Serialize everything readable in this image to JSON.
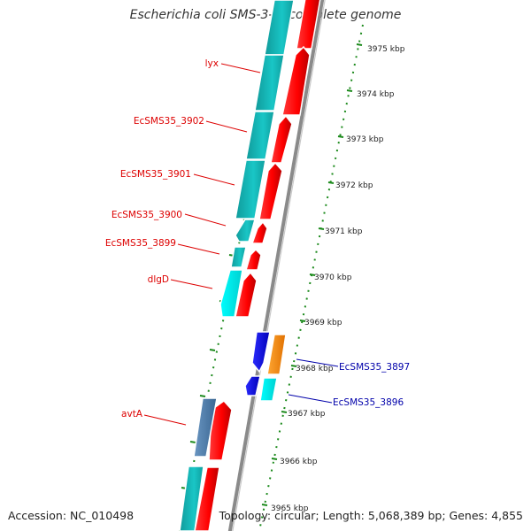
{
  "title": "Escherichia coli SMS-3-5, complete genome",
  "footer": {
    "accession": "Accession: NC_010498",
    "topology": "Topology: circular; Length: 5,068,389 bp; Genes: 4,855"
  },
  "colors": {
    "cds_forward": "#ff0000",
    "cds_reverse_inner": "#19c3c3",
    "cds_reverse_outer": "#00e5e5",
    "blue_gene": "#0000ee",
    "orange_gene": "#ff8c00",
    "steel_gene": "#4a7aa8",
    "label_red": "#dd0000",
    "label_blue": "#0000aa",
    "ruler_green": "#1c8a1c",
    "backbone": "#888888"
  },
  "ticks": [
    "3975 kbp",
    "3974 kbp",
    "3973 kbp",
    "3972 kbp",
    "3971 kbp",
    "3970 kbp",
    "3969 kbp",
    "3968 kbp",
    "3967 kbp",
    "3966 kbp",
    "3965 kbp"
  ],
  "gene_labels": [
    {
      "text": "lyx",
      "color": "red"
    },
    {
      "text": "EcSMS35_3902",
      "color": "red"
    },
    {
      "text": "EcSMS35_3901",
      "color": "red"
    },
    {
      "text": "EcSMS35_3900",
      "color": "red"
    },
    {
      "text": "EcSMS35_3899",
      "color": "red"
    },
    {
      "text": "dlgD",
      "color": "red"
    },
    {
      "text": "EcSMS35_3897",
      "color": "blue"
    },
    {
      "text": "EcSMS35_3896",
      "color": "blue"
    },
    {
      "text": "avtA",
      "color": "red"
    }
  ]
}
